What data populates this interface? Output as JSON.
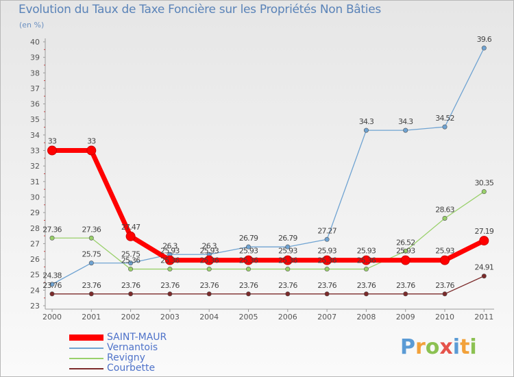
{
  "chart_data": {
    "type": "line",
    "title": "Evolution du Taux de Taxe Foncière sur les Propriétés Non Bâties",
    "ylabel": "(en %)",
    "xlabel": "",
    "ylim": [
      23,
      40
    ],
    "yticks": [
      "23",
      "24",
      "25",
      "26",
      "27",
      "28",
      "29",
      "30",
      "31",
      "32",
      "33",
      "34",
      "35",
      "36",
      "37",
      "38",
      "39",
      "40"
    ],
    "x": [
      "2000",
      "2001",
      "2002",
      "2003",
      "2004",
      "2005",
      "2006",
      "2007",
      "2008",
      "2009",
      "2010",
      "2011"
    ],
    "series": [
      {
        "name": "Courbette",
        "color": "#7b2a2a",
        "values": [
          23.76,
          23.76,
          23.76,
          23.76,
          23.76,
          23.76,
          23.76,
          23.76,
          23.76,
          23.76,
          23.76,
          24.91
        ],
        "labels": [
          "23.76",
          "23.76",
          "23.76",
          "23.76",
          "23.76",
          "23.76",
          "23.76",
          "23.76",
          "23.76",
          "23.76",
          "23.76",
          "24.91"
        ]
      },
      {
        "name": "Revigny",
        "color": "#99d06a",
        "values": [
          27.36,
          27.36,
          25.36,
          25.36,
          25.36,
          25.36,
          25.36,
          25.36,
          25.36,
          26.52,
          28.63,
          30.35
        ],
        "labels": [
          "27.36",
          "27.36",
          "25.36",
          "25.36",
          "25.36",
          "25.36",
          "25.36",
          "25.36",
          "25.36",
          "26.52",
          "28.63",
          "30.35"
        ]
      },
      {
        "name": "Vernantois",
        "color": "#6fa3d2",
        "values": [
          24.38,
          25.75,
          25.75,
          26.3,
          26.3,
          26.79,
          26.79,
          27.27,
          34.3,
          34.3,
          34.52,
          39.6
        ],
        "labels": [
          "24.38",
          "25.75",
          "25.75",
          "26.3",
          "26.3",
          "26.79",
          "26.79",
          "27.27",
          "34.3",
          "34.3",
          "34.52",
          "39.6"
        ]
      },
      {
        "name": "SAINT-MAUR",
        "color": "#ff0000",
        "values": [
          33,
          33,
          27.47,
          25.93,
          25.93,
          25.93,
          25.93,
          25.93,
          25.93,
          25.93,
          25.93,
          27.19
        ],
        "labels": [
          "33",
          "33",
          "27.47",
          "25.93",
          "25.93",
          "25.93",
          "25.93",
          "25.93",
          "25.93",
          "25.93",
          "25.93",
          "27.19"
        ]
      }
    ],
    "legend_order": [
      "SAINT-MAUR",
      "Vernantois",
      "Revigny",
      "Courbette"
    ],
    "legend_position": "bottom-left",
    "grid": false
  },
  "logo": {
    "letters": [
      "P",
      "r",
      "o",
      "x",
      "i",
      "t",
      "i"
    ],
    "colors": [
      "#5b9bd5",
      "#f2a13a",
      "#8cc152",
      "#e5534b",
      "#5b9bd5",
      "#f2a13a",
      "#8cc152"
    ]
  }
}
